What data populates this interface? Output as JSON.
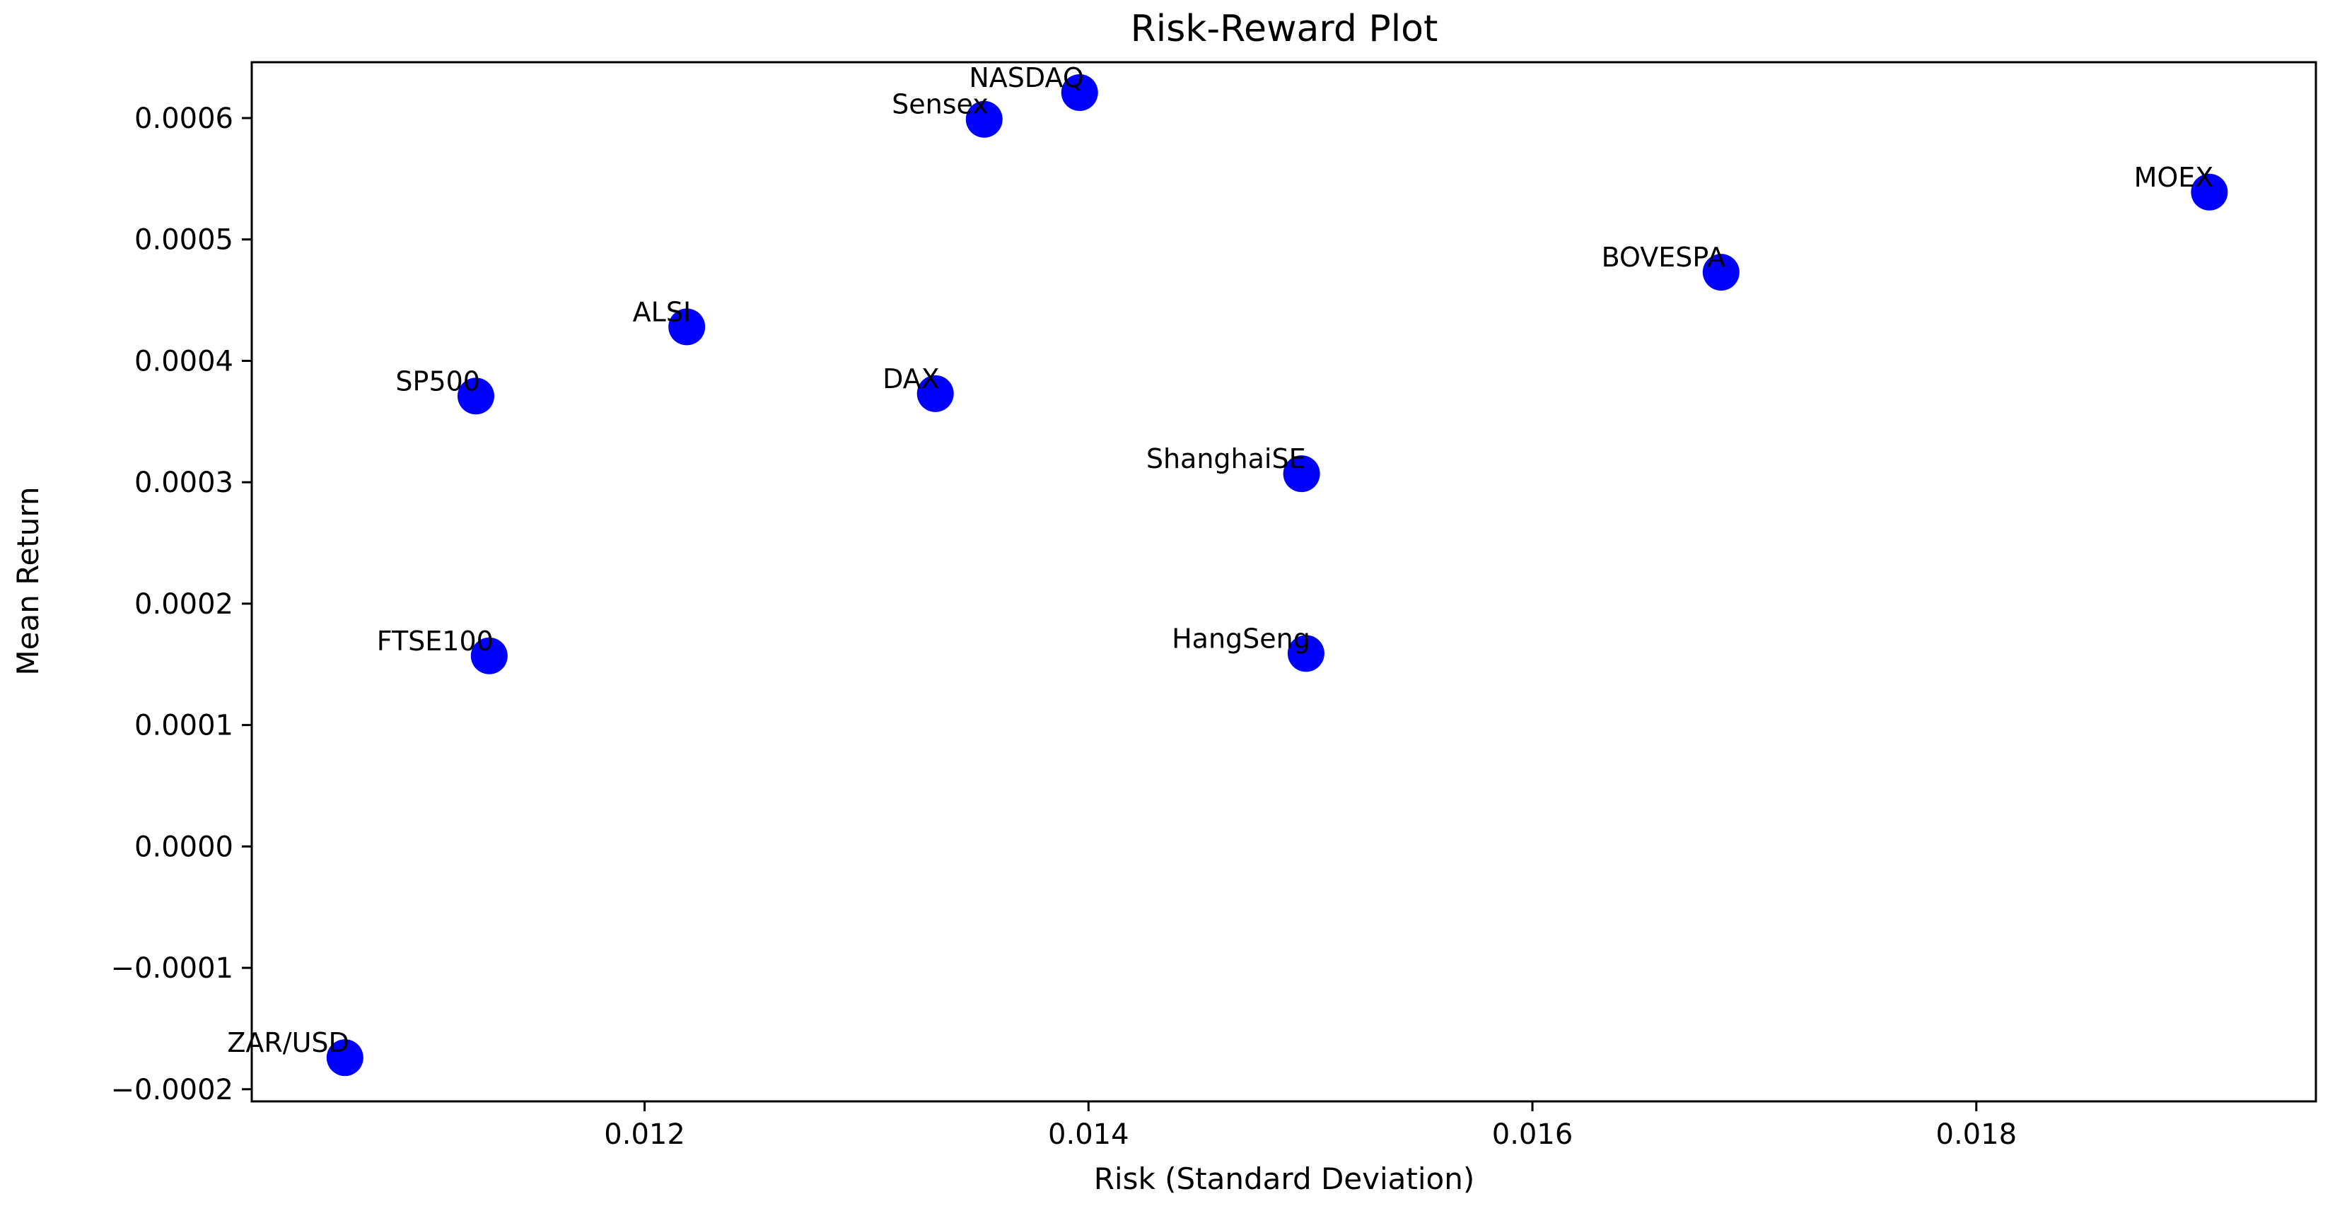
{
  "chart_data": {
    "type": "scatter",
    "title": "Risk-Reward Plot",
    "xlabel": "Risk (Standard Deviation)",
    "ylabel": "Mean Return",
    "xlim": [
      0.01023,
      0.01953
    ],
    "ylim": [
      -0.00021,
      0.000646
    ],
    "x_ticks": [
      0.012,
      0.014,
      0.016,
      0.018
    ],
    "x_tick_labels": [
      "0.012",
      "0.014",
      "0.016",
      "0.018"
    ],
    "y_ticks": [
      -0.0002,
      -0.0001,
      0.0,
      0.0001,
      0.0002,
      0.0003,
      0.0004,
      0.0005,
      0.0006
    ],
    "y_tick_labels": [
      "−0.0002",
      "−0.0001",
      "0.0000",
      "0.0001",
      "0.0002",
      "0.0003",
      "0.0004",
      "0.0005",
      "0.0006"
    ],
    "grid": false,
    "marker_color": "#0000ff",
    "points": [
      {
        "label": "NASDAQ",
        "x": 0.01396,
        "y": 0.000621
      },
      {
        "label": "Sensex",
        "x": 0.01353,
        "y": 0.000599
      },
      {
        "label": "MOEX",
        "x": 0.01905,
        "y": 0.000539
      },
      {
        "label": "BOVESPA",
        "x": 0.01685,
        "y": 0.000473
      },
      {
        "label": "ALSI",
        "x": 0.01219,
        "y": 0.000428
      },
      {
        "label": "SP500",
        "x": 0.01124,
        "y": 0.000371
      },
      {
        "label": "DAX",
        "x": 0.01331,
        "y": 0.000373
      },
      {
        "label": "ShanghaiSE",
        "x": 0.01496,
        "y": 0.000307
      },
      {
        "label": "FTSE100",
        "x": 0.0113,
        "y": 0.000157
      },
      {
        "label": "HangSeng",
        "x": 0.01498,
        "y": 0.000159
      },
      {
        "label": "ZAR/USD",
        "x": 0.01065,
        "y": -0.000174
      }
    ]
  }
}
